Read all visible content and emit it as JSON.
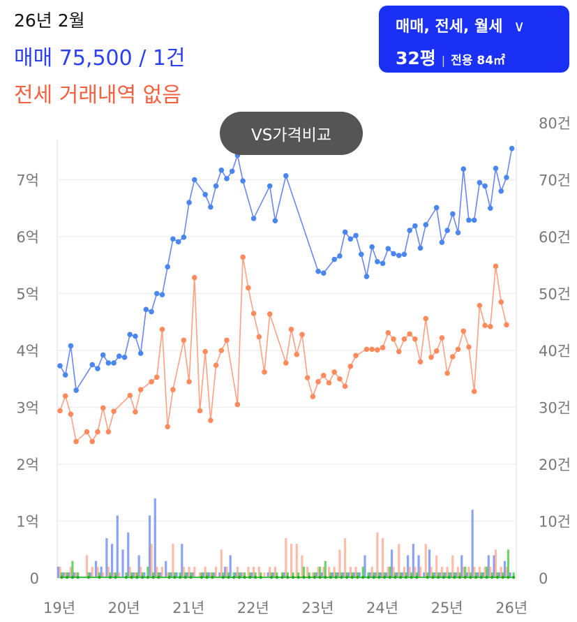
{
  "header": {
    "period": "26년 2월",
    "sale_summary": "매매 75,500 / 1건",
    "jeonse_summary": "전세 거래내역 없음"
  },
  "filter": {
    "types": "매매, 전세, 월세",
    "chevron_icon": "chevron-down-icon",
    "chevron": "∨",
    "pyeong": "32평",
    "separator": "|",
    "area": "전용 84㎡"
  },
  "vs_button": "VS가격비교",
  "colors": {
    "sale": "#4d72f0",
    "jeonse": "#ff8f70",
    "wolse": "#3cc43c",
    "filter_bg": "#1a30f5"
  },
  "chart_data": {
    "type": "line",
    "price_unit": "만원",
    "left_axis": {
      "ticks": [
        "0",
        "1억",
        "2억",
        "3억",
        "4억",
        "5억",
        "6억",
        "7억"
      ],
      "range_eok": [
        0,
        8
      ]
    },
    "right_axis": {
      "ticks": [
        "0",
        "10건",
        "20건",
        "30건",
        "40건",
        "50건",
        "60건",
        "70건",
        "80건"
      ],
      "range": [
        0,
        80
      ]
    },
    "x_ticks": [
      "19년",
      "20년",
      "21년",
      "22년",
      "23년",
      "24년",
      "25년",
      "26년"
    ],
    "grid": true,
    "series": [
      {
        "key": "sale",
        "type": "line",
        "points": [
          [
            "2019-02",
            37300
          ],
          [
            "2019-03",
            35700
          ],
          [
            "2019-04",
            40800
          ],
          [
            "2019-05",
            33000
          ],
          [
            "2019-08",
            37500
          ],
          [
            "2019-09",
            36800
          ],
          [
            "2019-10",
            39200
          ],
          [
            "2019-11",
            37800
          ],
          [
            "2019-12",
            37800
          ],
          [
            "2020-01",
            39000
          ],
          [
            "2020-02",
            38800
          ],
          [
            "2020-03",
            42800
          ],
          [
            "2020-04",
            42500
          ],
          [
            "2020-05",
            39500
          ],
          [
            "2020-06",
            47200
          ],
          [
            "2020-07",
            46800
          ],
          [
            "2020-08",
            50000
          ],
          [
            "2020-09",
            49800
          ],
          [
            "2020-10",
            54700
          ],
          [
            "2020-11",
            59600
          ],
          [
            "2020-12",
            59100
          ],
          [
            "2021-01",
            59900
          ],
          [
            "2021-02",
            66000
          ],
          [
            "2021-03",
            70000
          ],
          [
            "2021-05",
            67400
          ],
          [
            "2021-06",
            65200
          ],
          [
            "2021-07",
            68900
          ],
          [
            "2021-08",
            71700
          ],
          [
            "2021-09",
            70200
          ],
          [
            "2021-10",
            71500
          ],
          [
            "2021-11",
            74300
          ],
          [
            "2021-12",
            69800
          ],
          [
            "2022-02",
            63200
          ],
          [
            "2022-05",
            68900
          ],
          [
            "2022-06",
            62800
          ],
          [
            "2022-08",
            70700
          ],
          [
            "2023-02",
            53900
          ],
          [
            "2023-03",
            53600
          ],
          [
            "2023-05",
            56000
          ],
          [
            "2023-06",
            56600
          ],
          [
            "2023-07",
            60800
          ],
          [
            "2023-08",
            59600
          ],
          [
            "2023-09",
            60200
          ],
          [
            "2023-10",
            56900
          ],
          [
            "2023-11",
            53000
          ],
          [
            "2023-12",
            58200
          ],
          [
            "2024-01",
            55600
          ],
          [
            "2024-02",
            55300
          ],
          [
            "2024-03",
            57900
          ],
          [
            "2024-04",
            57000
          ],
          [
            "2024-05",
            56700
          ],
          [
            "2024-06",
            56900
          ],
          [
            "2024-07",
            61100
          ],
          [
            "2024-08",
            61900
          ],
          [
            "2024-09",
            58000
          ],
          [
            "2024-10",
            62100
          ],
          [
            "2024-12",
            65100
          ],
          [
            "2025-01",
            59000
          ],
          [
            "2025-02",
            61100
          ],
          [
            "2025-03",
            64000
          ],
          [
            "2025-04",
            60700
          ],
          [
            "2025-05",
            71900
          ],
          [
            "2025-06",
            62900
          ],
          [
            "2025-07",
            62900
          ],
          [
            "2025-08",
            69500
          ],
          [
            "2025-09",
            68900
          ],
          [
            "2025-10",
            65000
          ],
          [
            "2025-11",
            72000
          ],
          [
            "2025-12",
            68000
          ],
          [
            "2026-01",
            70400
          ],
          [
            "2026-02",
            75500
          ]
        ]
      },
      {
        "key": "jeonse",
        "type": "line",
        "points": [
          [
            "2019-02",
            29400
          ],
          [
            "2019-03",
            32000
          ],
          [
            "2019-04",
            28800
          ],
          [
            "2019-05",
            24000
          ],
          [
            "2019-07",
            25700
          ],
          [
            "2019-08",
            24000
          ],
          [
            "2019-09",
            25700
          ],
          [
            "2019-10",
            29900
          ],
          [
            "2019-11",
            25700
          ],
          [
            "2019-12",
            29300
          ],
          [
            "2020-03",
            32100
          ],
          [
            "2020-04",
            29200
          ],
          [
            "2020-05",
            33100
          ],
          [
            "2020-07",
            34500
          ],
          [
            "2020-08",
            35300
          ],
          [
            "2020-09",
            43700
          ],
          [
            "2020-10",
            26600
          ],
          [
            "2020-11",
            33100
          ],
          [
            "2021-01",
            41800
          ],
          [
            "2021-02",
            34500
          ],
          [
            "2021-03",
            52800
          ],
          [
            "2021-04",
            29400
          ],
          [
            "2021-05",
            39800
          ],
          [
            "2021-06",
            27700
          ],
          [
            "2021-07",
            37400
          ],
          [
            "2021-08",
            40000
          ],
          [
            "2021-09",
            41800
          ],
          [
            "2021-11",
            30500
          ],
          [
            "2021-12",
            56400
          ],
          [
            "2022-01",
            51000
          ],
          [
            "2022-02",
            46500
          ],
          [
            "2022-03",
            42400
          ],
          [
            "2022-04",
            36200
          ],
          [
            "2022-05",
            46400
          ],
          [
            "2022-08",
            37800
          ],
          [
            "2022-09",
            43700
          ],
          [
            "2022-10",
            39300
          ],
          [
            "2022-11",
            42800
          ],
          [
            "2022-12",
            35200
          ],
          [
            "2023-01",
            31900
          ],
          [
            "2023-02",
            34500
          ],
          [
            "2023-03",
            35600
          ],
          [
            "2023-04",
            34300
          ],
          [
            "2023-05",
            36200
          ],
          [
            "2023-06",
            35000
          ],
          [
            "2023-07",
            33700
          ],
          [
            "2023-08",
            37200
          ],
          [
            "2023-09",
            39100
          ],
          [
            "2023-11",
            40200
          ],
          [
            "2023-12",
            40200
          ],
          [
            "2024-01",
            40100
          ],
          [
            "2024-02",
            40500
          ],
          [
            "2024-03",
            43100
          ],
          [
            "2024-04",
            42000
          ],
          [
            "2024-05",
            39800
          ],
          [
            "2024-06",
            42000
          ],
          [
            "2024-07",
            42900
          ],
          [
            "2024-08",
            42000
          ],
          [
            "2024-09",
            38000
          ],
          [
            "2024-10",
            45600
          ],
          [
            "2024-11",
            38800
          ],
          [
            "2024-12",
            39900
          ],
          [
            "2025-01",
            42200
          ],
          [
            "2025-02",
            36000
          ],
          [
            "2025-03",
            38900
          ],
          [
            "2025-04",
            40200
          ],
          [
            "2025-05",
            43400
          ],
          [
            "2025-06",
            40600
          ],
          [
            "2025-07",
            32800
          ],
          [
            "2025-08",
            47900
          ],
          [
            "2025-09",
            44400
          ],
          [
            "2025-10",
            44200
          ],
          [
            "2025-11",
            54800
          ],
          [
            "2025-12",
            48500
          ],
          [
            "2026-01",
            44500
          ]
        ]
      }
    ],
    "volume": {
      "start": "2019-02",
      "sale": [
        2,
        1,
        1,
        1,
        0,
        0,
        1,
        3,
        2,
        7,
        6,
        11,
        5,
        8,
        1,
        4,
        1,
        11,
        14,
        1,
        3,
        1,
        1,
        6,
        1,
        1,
        0,
        1,
        1,
        1,
        1,
        2,
        4,
        1,
        1,
        0,
        1,
        0,
        0,
        1,
        1,
        0,
        1,
        0,
        0,
        0,
        0,
        0,
        1,
        1,
        0,
        1,
        1,
        1,
        1,
        1,
        1,
        4,
        1,
        1,
        1,
        1,
        5,
        1,
        1,
        4,
        6,
        4,
        1,
        5,
        1,
        1,
        1,
        1,
        1,
        4,
        1,
        12,
        1,
        1,
        4,
        4,
        1,
        3,
        1
      ],
      "jeonse": [
        2,
        1,
        2,
        1,
        0,
        4,
        2,
        2,
        1,
        2,
        1,
        1,
        0,
        2,
        1,
        2,
        0,
        6,
        2,
        2,
        1,
        6,
        0,
        2,
        2,
        2,
        1,
        2,
        1,
        2,
        5,
        2,
        0,
        2,
        1,
        2,
        2,
        2,
        1,
        2,
        2,
        0,
        7,
        6,
        6,
        4,
        2,
        1,
        2,
        2,
        2,
        2,
        5,
        7,
        2,
        2,
        0,
        0,
        2,
        8,
        7,
        2,
        2,
        6,
        2,
        2,
        2,
        2,
        6,
        2,
        4,
        2,
        2,
        4,
        2,
        2,
        2,
        2,
        2,
        2,
        2,
        5,
        2,
        2,
        0
      ],
      "wolse": [
        1,
        1,
        3,
        1,
        0,
        1,
        0,
        1,
        0,
        1,
        1,
        0,
        1,
        1,
        1,
        1,
        2,
        1,
        1,
        0,
        1,
        1,
        1,
        1,
        1,
        0,
        1,
        1,
        1,
        0,
        1,
        1,
        1,
        1,
        1,
        1,
        1,
        1,
        0,
        1,
        1,
        1,
        1,
        1,
        1,
        2,
        1,
        1,
        2,
        3,
        1,
        1,
        1,
        1,
        1,
        1,
        2,
        1,
        1,
        1,
        1,
        2,
        1,
        1,
        1,
        1,
        1,
        0,
        1,
        1,
        1,
        1,
        1,
        1,
        1,
        2,
        1,
        1,
        1,
        2,
        1,
        1,
        1,
        5,
        1
      ]
    }
  }
}
